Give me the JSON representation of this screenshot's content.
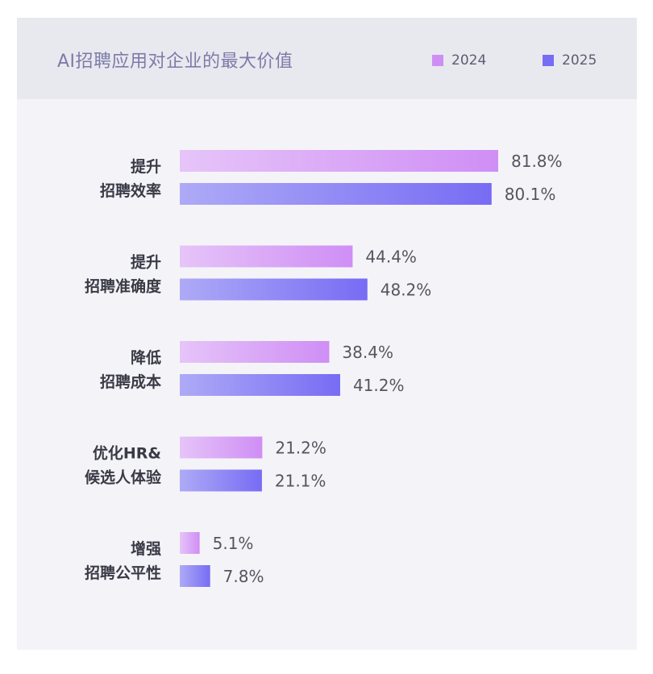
{
  "chart_data": {
    "type": "bar",
    "orientation": "horizontal",
    "title": "AI招聘应用对企业的最大价值",
    "categories": [
      [
        "提升",
        "招聘效率"
      ],
      [
        "提升",
        "招聘准确度"
      ],
      [
        "降低",
        "招聘成本"
      ],
      [
        "优化HR&",
        "候选人体验"
      ],
      [
        "增强",
        "招聘公平性"
      ]
    ],
    "series": [
      {
        "name": "2024",
        "values": [
          81.8,
          44.4,
          38.4,
          21.2,
          5.1
        ],
        "labels": [
          "81.8%",
          "44.4%",
          "38.4%",
          "21.2%",
          "5.1%"
        ],
        "color": "#cf8ef5",
        "gradient_start": "#e6c4f8"
      },
      {
        "name": "2025",
        "values": [
          80.1,
          48.2,
          41.2,
          21.1,
          7.8
        ],
        "labels": [
          "80.1%",
          "48.2%",
          "41.2%",
          "21.1%",
          "7.8%"
        ],
        "color": "#776cf4",
        "gradient_start": "#aeaaf6"
      }
    ],
    "xlim": [
      0,
      100
    ],
    "grid": false,
    "legend_position": "top-right"
  }
}
